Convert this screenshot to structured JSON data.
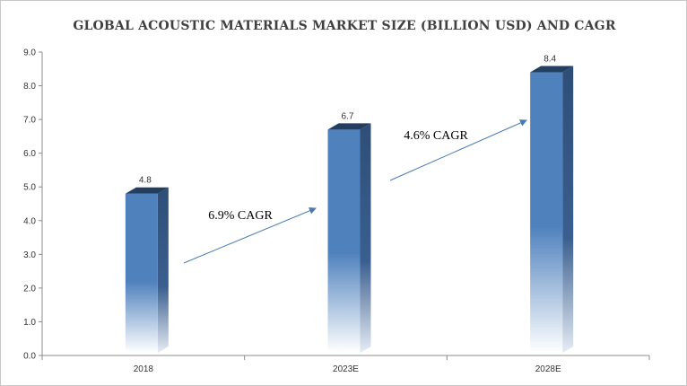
{
  "chart_data": {
    "type": "bar",
    "title": "GLOBAL ACOUSTIC MATERIALS MARKET SIZE (BILLION USD) AND CAGR",
    "categories": [
      "2018",
      "2023E",
      "2028E"
    ],
    "values": [
      4.8,
      6.7,
      8.4
    ],
    "data_labels": [
      "4.8",
      "6.7",
      "8.4"
    ],
    "ylim": [
      0,
      9
    ],
    "yticks": [
      "0.0",
      "1.0",
      "2.0",
      "3.0",
      "4.0",
      "5.0",
      "6.0",
      "7.0",
      "8.0",
      "9.0"
    ],
    "grid": false,
    "annotations": [
      {
        "text": "6.9% CAGR",
        "from": "2018",
        "to": "2023E"
      },
      {
        "text": "4.6% CAGR",
        "from": "2023E",
        "to": "2028E"
      }
    ],
    "colors": {
      "bar_front": "#4f81bd",
      "bar_side": "#2e4e76",
      "bar_top": "#233e5f",
      "arrow": "#4a7ab5"
    }
  }
}
